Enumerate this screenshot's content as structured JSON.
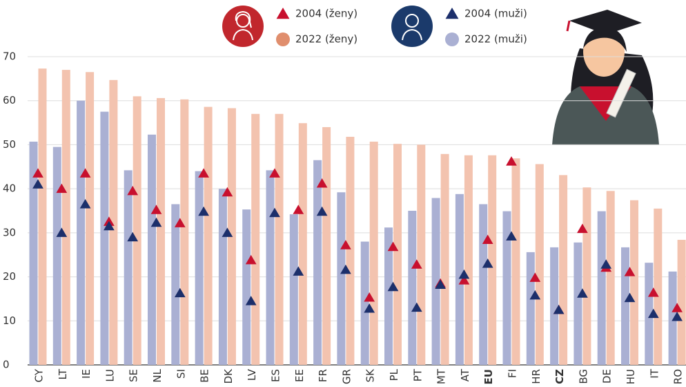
{
  "chart_data": {
    "type": "bar",
    "categories": [
      "CY",
      "LT",
      "IE",
      "LU",
      "SE",
      "NL",
      "SI",
      "BE",
      "DK",
      "LV",
      "ES",
      "EE",
      "FR",
      "GR",
      "SK",
      "PL",
      "PT",
      "MT",
      "AT",
      "EU",
      "FI",
      "HR",
      "CZ",
      "BG",
      "DE",
      "HU",
      "IT",
      "RO"
    ],
    "highlight_categories": [
      "EU",
      "CZ"
    ],
    "series": [
      {
        "name": "2004 (ženy)",
        "color": "#c8102e",
        "marker": "triangle",
        "values": [
          43.5,
          40,
          43.5,
          32.5,
          39.5,
          35.2,
          32.2,
          43.5,
          39.2,
          23.8,
          43.5,
          35.2,
          41.2,
          27.2,
          15.3,
          26.8,
          22.8,
          18.5,
          19.2,
          28.4,
          46.2,
          19.8,
          12.5,
          30.9,
          22.1,
          21.1,
          16.4,
          12.9
        ]
      },
      {
        "name": "2022 (ženy)",
        "color": "#f3c3af",
        "marker": "bar",
        "values": [
          67.3,
          67,
          66.5,
          64.7,
          61,
          60.6,
          60.3,
          58.6,
          58.3,
          57,
          57,
          54.9,
          54,
          51.8,
          50.7,
          50.2,
          50,
          47.9,
          47.6,
          47.6,
          46.9,
          45.6,
          43.1,
          40.3,
          39.5,
          37.4,
          35.5,
          28.4
        ]
      },
      {
        "name": "2004 (muži)",
        "color": "#1c2f6b",
        "marker": "triangle",
        "values": [
          41,
          30,
          36.5,
          31.5,
          29,
          32.3,
          16.3,
          34.8,
          30,
          14.5,
          34.5,
          21.2,
          34.8,
          21.6,
          12.8,
          17.7,
          13,
          18.2,
          20.5,
          23,
          29.2,
          15.8,
          12.5,
          16.2,
          22.8,
          15.2,
          11.6,
          10.9
        ]
      },
      {
        "name": "2022 (muži)",
        "color": "#aab0d3",
        "marker": "bar",
        "values": [
          50.7,
          49.5,
          60,
          57.5,
          44.2,
          52.3,
          36.5,
          44,
          40,
          35.3,
          44.2,
          34.2,
          46.5,
          39.2,
          28,
          31.2,
          35,
          37.9,
          38.8,
          36.5,
          34.9,
          25.6,
          26.7,
          27.8,
          34.9,
          26.7,
          23.2,
          21.2
        ]
      }
    ],
    "ylim": [
      0,
      70
    ],
    "yticks": [
      0,
      10,
      20,
      30,
      40,
      50,
      60,
      70
    ],
    "grid": true
  }
}
